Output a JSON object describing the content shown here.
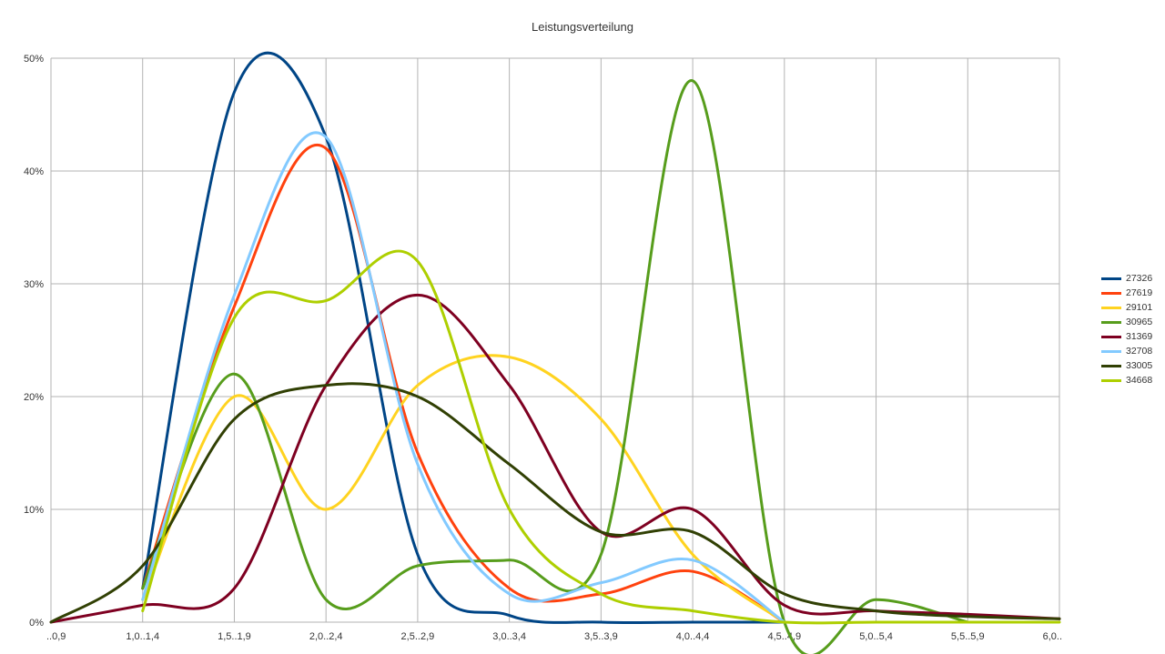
{
  "chart_data": {
    "type": "line",
    "title": "Leistungsverteilung",
    "xlabel": "",
    "ylabel": "",
    "categories": [
      "..0,9",
      "1,0..1,4",
      "1,5..1,9",
      "2,0..2,4",
      "2,5..2,9",
      "3,0..3,4",
      "3,5..3,9",
      "4,0..4,4",
      "4,5..4,9",
      "5,0..5,4",
      "5,5..5,9",
      "6,0.."
    ],
    "y_ticks": [
      "0%",
      "10%",
      "20%",
      "30%",
      "40%",
      "50%"
    ],
    "ylim": [
      0,
      50
    ],
    "grid": true,
    "legend_position": "right",
    "series": [
      {
        "name": "27326",
        "color": "#004586",
        "values": [
          null,
          3,
          47,
          43,
          6,
          0.6,
          0,
          0,
          0,
          null,
          null,
          null
        ]
      },
      {
        "name": "27619",
        "color": "#ff420e",
        "values": [
          null,
          3,
          28,
          42,
          15,
          3,
          2.5,
          4.5,
          0,
          null,
          null,
          null
        ]
      },
      {
        "name": "29101",
        "color": "#ffd320",
        "values": [
          null,
          2,
          20,
          10,
          21,
          23.5,
          18,
          6,
          0,
          null,
          null,
          null
        ]
      },
      {
        "name": "30965",
        "color": "#579d1c",
        "values": [
          null,
          3,
          22,
          2,
          5,
          5.5,
          6,
          48,
          0,
          2,
          0,
          null
        ]
      },
      {
        "name": "31369",
        "color": "#7e0021",
        "values": [
          0,
          1.5,
          3,
          21,
          29,
          21,
          8,
          10,
          1.5,
          1,
          0.7,
          0.3
        ]
      },
      {
        "name": "32708",
        "color": "#83caff",
        "values": [
          null,
          2,
          29,
          43,
          14,
          2.5,
          3.5,
          5.5,
          0,
          null,
          null,
          null
        ]
      },
      {
        "name": "33005",
        "color": "#314004",
        "values": [
          0,
          5,
          18,
          21,
          20,
          14,
          8,
          8,
          2.5,
          1,
          0.5,
          0.3
        ]
      },
      {
        "name": "34668",
        "color": "#aecf00",
        "values": [
          null,
          1,
          27,
          28.5,
          32,
          10,
          2.5,
          1,
          0,
          0,
          0,
          0
        ]
      }
    ]
  }
}
